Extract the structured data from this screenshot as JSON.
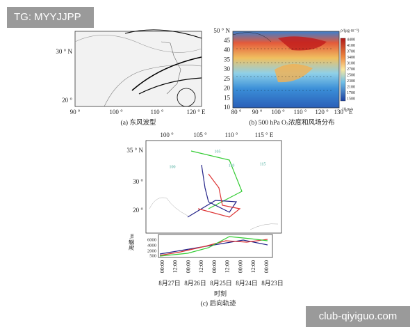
{
  "watermarks": [
    "TG: MYYJJPP",
    "club-qiyiguo.com"
  ],
  "panel_a": {
    "caption": "(a) 东风波型",
    "x_labels": [
      "90 °",
      "100 °",
      "110 °",
      "120 ° E"
    ],
    "y_labels": [
      "30 ° N",
      "20 °"
    ]
  },
  "panel_b": {
    "caption": [
      "(b) 500 hPa O",
      "3",
      "浓度和风场分布"
    ],
    "x_labels": [
      "80 °",
      "90 °",
      "100 °",
      "110 °",
      "120 °",
      "130 ° E"
    ],
    "y_labels": [
      "50 ° N",
      "45",
      "40",
      "35",
      "30",
      "25",
      "20",
      "15",
      "10"
    ],
    "colorbar_unit": "ρ/(μg·m⁻³)",
    "colorbar_levels": [
      4400,
      4100,
      3700,
      3400,
      3100,
      2700,
      2500,
      2300,
      2100,
      1700,
      1500
    ],
    "wind_scale": "10 m/s"
  },
  "panel_c": {
    "caption": "(c) 后向轨迹",
    "lon_labels": [
      "100 °",
      "105 °",
      "110 °",
      "115 ° E"
    ],
    "lat_labels": [
      "35 ° N",
      "30 °",
      "20 °"
    ],
    "contour_labels": [
      "100",
      "105",
      "110",
      "115"
    ],
    "altitude_axis_label": "海拔/m",
    "altitude_ticks": [
      6000,
      4000,
      2000,
      500
    ],
    "time_ticks": [
      "00:00",
      "12:00",
      "00:00",
      "12:00",
      "00:00",
      "12:00",
      "00:00",
      "12:00",
      "00:00"
    ],
    "dates": [
      "8月27日",
      "8月26日",
      "8月25日",
      "8月24日",
      "8月23日"
    ],
    "time_axis_label": "时刻"
  }
}
